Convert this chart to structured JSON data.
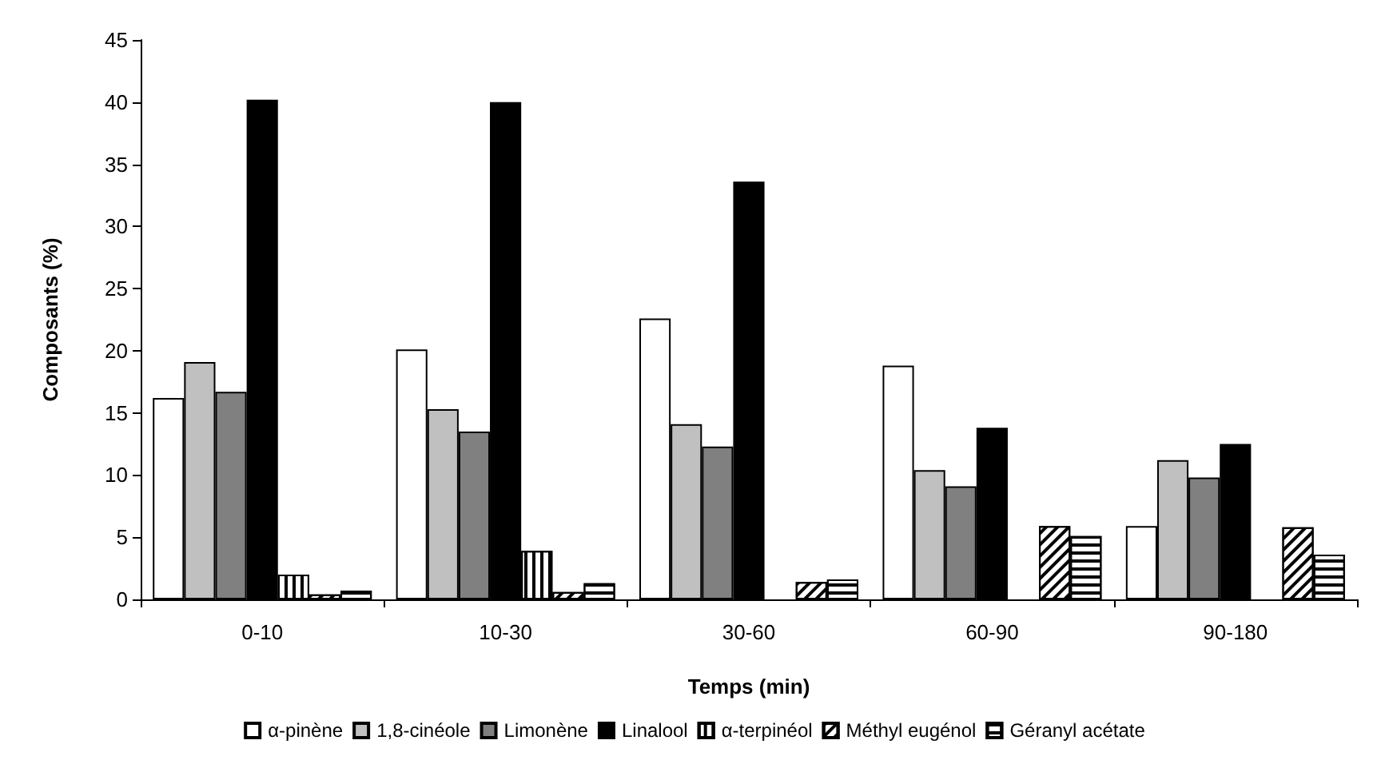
{
  "chart_data": {
    "type": "bar",
    "xlabel": "Temps (min)",
    "ylabel": "Composants (%)",
    "categories": [
      "0-10",
      "10-30",
      "30-60",
      "60-90",
      "90-180"
    ],
    "series": [
      {
        "name": "α-pinène",
        "color": "#ffffff",
        "values": [
          16.2,
          20.1,
          22.6,
          18.8,
          5.9
        ]
      },
      {
        "name": "1,8-cinéole",
        "color": "#c0c0c0",
        "values": [
          19.1,
          15.3,
          14.1,
          10.4,
          11.2
        ]
      },
      {
        "name": "Limonène",
        "color": "#808080",
        "values": [
          16.7,
          13.5,
          12.3,
          9.1,
          9.8
        ]
      },
      {
        "name": "Linalool",
        "color": "#000000",
        "values": [
          40.2,
          40.0,
          33.6,
          13.8,
          12.5
        ]
      },
      {
        "name": "α-terpinéol",
        "color": "#ffffff",
        "values": [
          2.0,
          3.9,
          null,
          null,
          null
        ]
      },
      {
        "name": "Méthyl eugénol",
        "color": "#ffffff",
        "values": [
          0.4,
          0.6,
          1.4,
          5.9,
          5.8
        ]
      },
      {
        "name": "Géranyl acétate",
        "color": "#ffffff",
        "values": [
          0.7,
          1.3,
          1.6,
          5.1,
          3.6
        ]
      }
    ],
    "ylim": [
      0,
      45
    ],
    "yticks": [
      0,
      5,
      10,
      15,
      20,
      25,
      30,
      35,
      40,
      45
    ],
    "grid": false,
    "legend": "bottom"
  }
}
